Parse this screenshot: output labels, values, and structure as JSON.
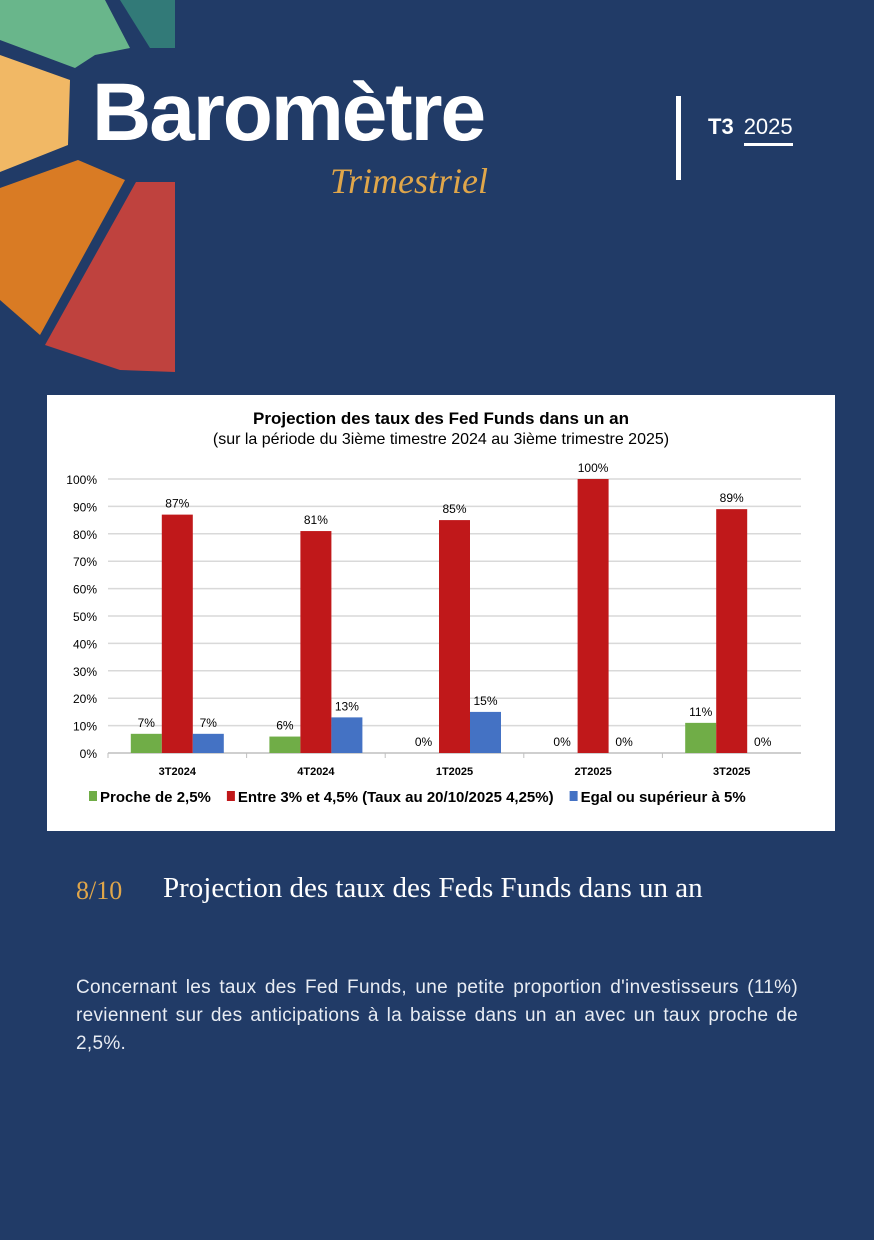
{
  "header": {
    "brand": "Barомètre",
    "brand_text": "Baromètre",
    "subtitle": "Trimestriel",
    "quarter": "T3",
    "year": "2025"
  },
  "colors": {
    "background": "#213b67",
    "accent": "#e0a64a",
    "green": "#70ad47",
    "red": "#c0181a",
    "blue": "#4472c4"
  },
  "section": {
    "number": "8/10",
    "title": "Projection des taux des Feds Funds dans un an"
  },
  "body_text": "Concernant les taux des Fed Funds, une petite proportion d'investisseurs (11%) reviennent sur des anticipations à la baisse dans un an avec un taux proche de 2,5%.",
  "chart_data": {
    "type": "bar",
    "title": "Projection des taux des Fed Funds dans un an",
    "subtitle": "(sur la période du 3ième timestre 2024 au 3ième trimestre 2025)",
    "categories": [
      "3T2024",
      "4T2024",
      "1T2025",
      "2T2025",
      "3T2025"
    ],
    "series": [
      {
        "name": "Proche de 2,5%",
        "color": "#70ad47",
        "values": [
          7,
          6,
          0,
          0,
          11
        ]
      },
      {
        "name": "Entre 3% et 4,5% (Taux au 20/10/2025 4,25%)",
        "color": "#c0181a",
        "values": [
          87,
          81,
          85,
          100,
          89
        ]
      },
      {
        "name": "Egal ou supérieur à 5%",
        "color": "#4472c4",
        "values": [
          7,
          13,
          15,
          0,
          0
        ]
      }
    ],
    "yticks": [
      "0%",
      "10%",
      "20%",
      "30%",
      "40%",
      "50%",
      "60%",
      "70%",
      "80%",
      "90%",
      "100%"
    ],
    "ylim": [
      0,
      100
    ],
    "grid": true,
    "legend": "bottom"
  }
}
